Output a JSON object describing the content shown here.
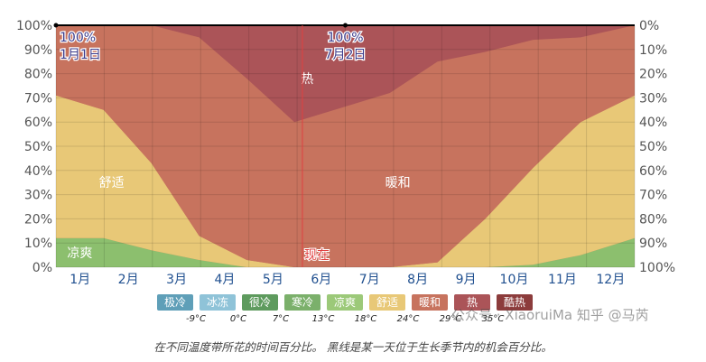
{
  "chart_data": {
    "type": "area",
    "stacked": true,
    "x_categories": [
      "1月",
      "2月",
      "3月",
      "4月",
      "5月",
      "6月",
      "7月",
      "8月",
      "9月",
      "10月",
      "11月",
      "12月"
    ],
    "x_days": [
      0,
      30,
      60,
      90,
      120,
      150,
      180,
      210,
      240,
      270,
      300,
      330,
      364
    ],
    "ylim": [
      0,
      100
    ],
    "y_ticks_left": [
      "0%",
      "10%",
      "20%",
      "30%",
      "40%",
      "50%",
      "60%",
      "70%",
      "80%",
      "90%",
      "100%"
    ],
    "y_ticks_right": [
      "100%",
      "90%",
      "80%",
      "70%",
      "60%",
      "50%",
      "40%",
      "30%",
      "20%",
      "10%",
      "0%"
    ],
    "series": [
      {
        "name": "凉爽",
        "color": "#8cbf6e",
        "values": [
          12,
          12,
          7,
          3,
          0,
          0,
          0,
          0,
          0,
          0,
          1,
          5,
          12
        ]
      },
      {
        "name": "舒适",
        "color": "#e8c877",
        "values": [
          59,
          53,
          36,
          10,
          3,
          0,
          0,
          0,
          2,
          20,
          40,
          55,
          59
        ]
      },
      {
        "name": "暖和",
        "color": "#c7735e",
        "values": [
          29,
          35,
          57,
          82,
          75,
          60,
          66,
          72,
          83,
          69,
          53,
          35,
          29
        ]
      },
      {
        "name": "热",
        "color": "#ab5458",
        "values": [
          0,
          0,
          0,
          5,
          22,
          40,
          34,
          28,
          15,
          11,
          6,
          5,
          0
        ]
      }
    ],
    "region_labels": [
      {
        "text": "凉爽",
        "day": 15,
        "value": 6
      },
      {
        "text": "舒适",
        "day": 35,
        "value": 35
      },
      {
        "text": "暖和",
        "day": 215,
        "value": 35
      },
      {
        "text": "热",
        "day": 158,
        "value": 78
      }
    ],
    "annotations": [
      {
        "text_pct": "100%",
        "text_date": "1月1日",
        "day": 0
      },
      {
        "text_pct": "100%",
        "text_date": "7月2日",
        "day": 182
      }
    ],
    "now_marker": {
      "label": "现在",
      "day": 155
    },
    "legend": [
      {
        "label": "极冷",
        "temp": "-9°C",
        "color": "#5f9fb8"
      },
      {
        "label": "冰冻",
        "temp": "0°C",
        "color": "#8fc3d8"
      },
      {
        "label": "很冷",
        "temp": "7°C",
        "color": "#5e9b5e"
      },
      {
        "label": "寒冷",
        "temp": "13°C",
        "color": "#7bb06b"
      },
      {
        "label": "凉爽",
        "temp": "18°C",
        "color": "#9cc979"
      },
      {
        "label": "舒适",
        "temp": "24°C",
        "color": "#e8c877"
      },
      {
        "label": "暖和",
        "temp": "29°C",
        "color": "#c7735e"
      },
      {
        "label": "热",
        "temp": "35°C",
        "color": "#ab5458"
      },
      {
        "label": "酷热",
        "temp": "",
        "color": "#8c3c3c"
      }
    ],
    "grid": true,
    "legend_position": "bottom"
  },
  "caption": "在不同温度带所花的时间百分比。 黑线是某一天位于生长季节内的机会百分比。",
  "watermark": "公众号 · XiaoruiMa 知乎 @马芮"
}
